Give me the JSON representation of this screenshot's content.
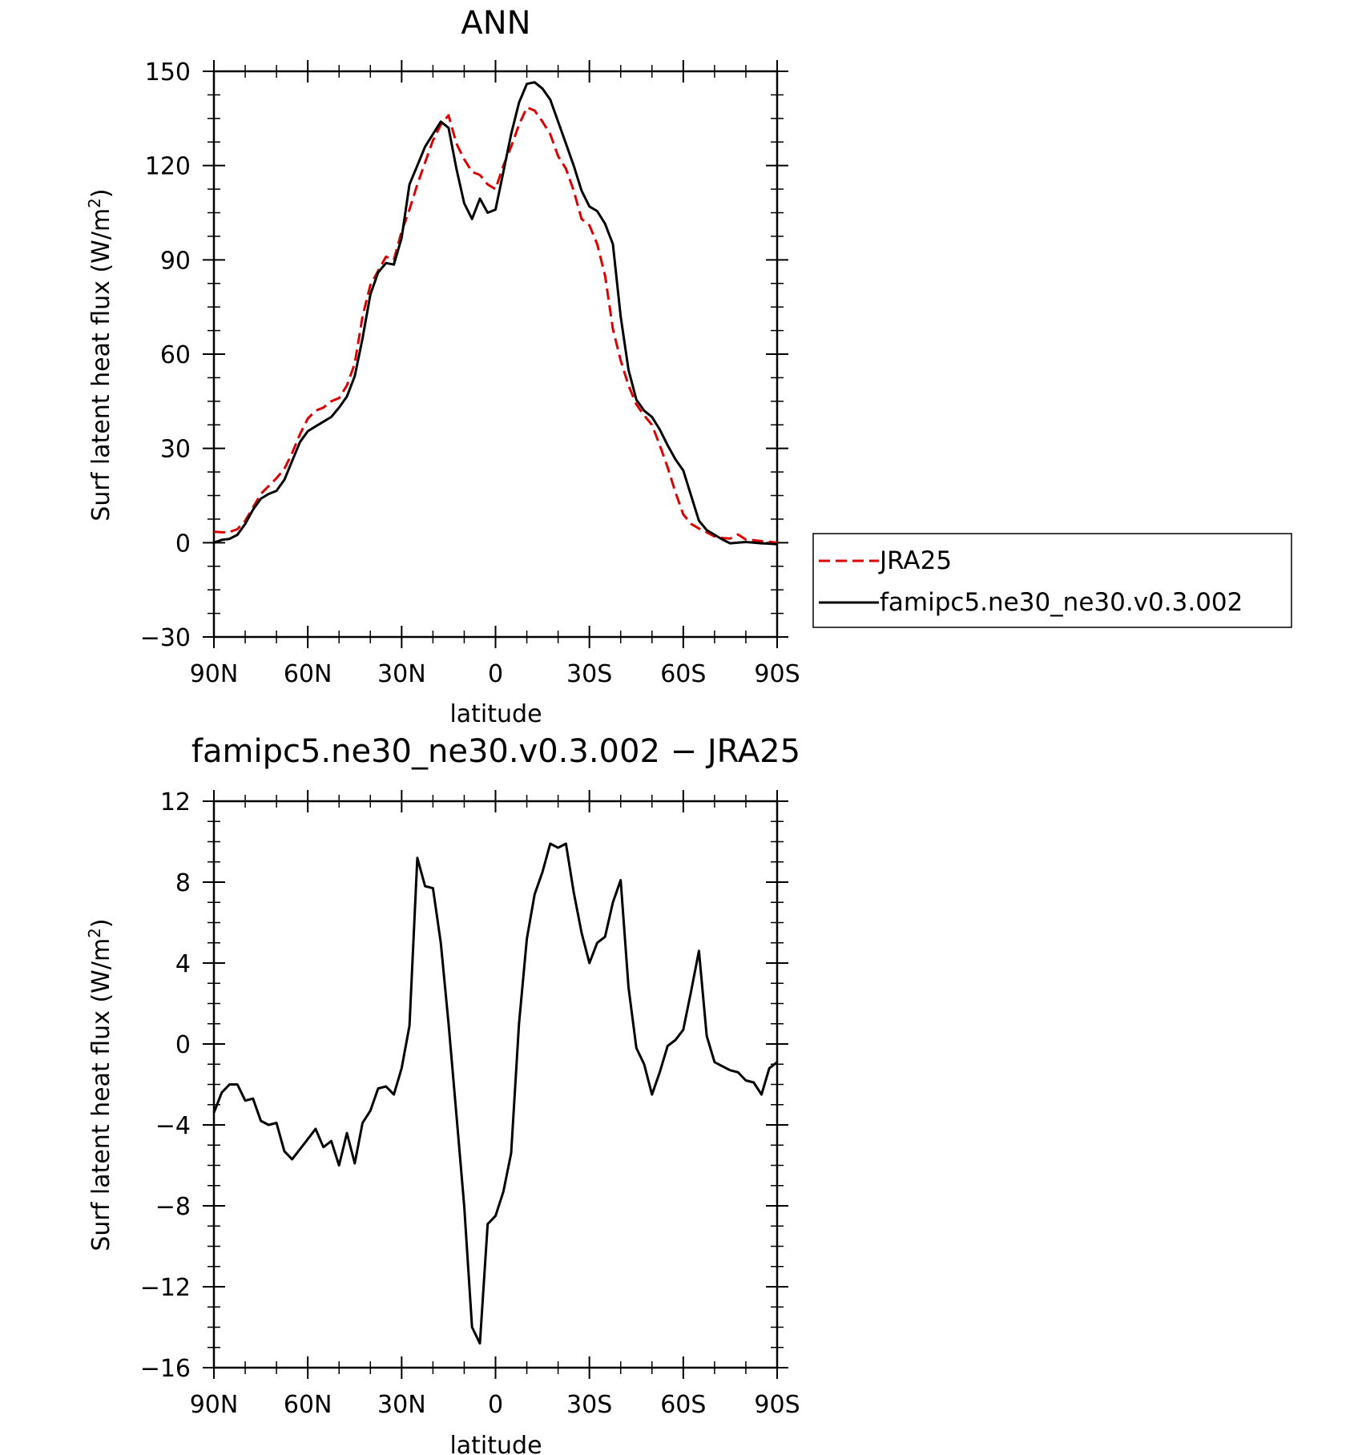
{
  "chart_data": [
    {
      "type": "line",
      "title": "ANN",
      "xlabel": "latitude",
      "ylabel": "Surf latent heat flux (W/m",
      "ylabel_sup": "2",
      "ylabel_tail": ")",
      "xlim": [
        90,
        -90
      ],
      "ylim": [
        -30,
        150
      ],
      "xticks": [
        90,
        60,
        30,
        0,
        -30,
        -60,
        -90
      ],
      "xtick_labels": [
        "90N",
        "60N",
        "30N",
        "0",
        "30S",
        "60S",
        "90S"
      ],
      "yticks": [
        -30,
        0,
        30,
        60,
        90,
        120,
        150
      ],
      "ytick_labels": [
        "−30",
        "0",
        "30",
        "60",
        "90",
        "120",
        "150"
      ],
      "legend_position": "right",
      "series": [
        {
          "name": "JRA25",
          "color": "#dd0000",
          "style": "dashed",
          "x": [
            90,
            87.5,
            85,
            82.5,
            80,
            77.5,
            75,
            72.5,
            70,
            67.5,
            65,
            62.5,
            60,
            57.5,
            55,
            52.5,
            50,
            47.5,
            45,
            42.5,
            40,
            37.5,
            35,
            32.5,
            30,
            27.5,
            25,
            22.5,
            20,
            17.5,
            15,
            12.5,
            10,
            7.5,
            5,
            2.5,
            0,
            -2.5,
            -5,
            -7.5,
            -10,
            -12.5,
            -15,
            -17.5,
            -20,
            -22.5,
            -25,
            -27.5,
            -30,
            -32.5,
            -35,
            -37.5,
            -40,
            -42.5,
            -45,
            -47.5,
            -50,
            -52.5,
            -55,
            -57.5,
            -60,
            -62.5,
            -65,
            -67.5,
            -70,
            -72.5,
            -75,
            -77.5,
            -80,
            -82.5,
            -85,
            -87.5,
            -90
          ],
          "y": [
            3.5,
            3.3,
            3.4,
            4.3,
            7.0,
            11.2,
            15.5,
            18.0,
            20.5,
            23.5,
            28.5,
            34.5,
            39.5,
            42.0,
            43.0,
            45.0,
            46.0,
            50.0,
            57.0,
            72.0,
            82.0,
            86.5,
            91.0,
            90.0,
            99.0,
            106.0,
            114.0,
            121.0,
            128.0,
            133.0,
            136.0,
            127.0,
            122.0,
            118.0,
            117.0,
            114.0,
            112.5,
            120.0,
            126.0,
            133.0,
            138.5,
            137.5,
            134.0,
            130.0,
            123.0,
            119.0,
            112.0,
            103.0,
            101.0,
            95.0,
            85.0,
            68.0,
            58.0,
            50.0,
            44.0,
            40.5,
            37.5,
            31.0,
            24.0,
            16.0,
            9.0,
            6.0,
            4.5,
            3.3,
            2.0,
            1.5,
            1.3,
            2.6,
            1.0,
            0.8,
            0.5,
            0.3,
            0.0
          ]
        },
        {
          "name": "famipc5.ne30_ne30.v0.3.002",
          "color": "#000000",
          "style": "solid",
          "x": [
            90,
            87.5,
            85,
            82.5,
            80,
            77.5,
            75,
            72.5,
            70,
            67.5,
            65,
            62.5,
            60,
            57.5,
            55,
            52.5,
            50,
            47.5,
            45,
            42.5,
            40,
            37.5,
            35,
            32.5,
            30,
            27.5,
            25,
            22.5,
            20,
            17.5,
            15,
            12.5,
            10,
            7.5,
            5,
            2.5,
            0,
            -2.5,
            -5,
            -7.5,
            -10,
            -12.5,
            -15,
            -17.5,
            -20,
            -22.5,
            -25,
            -27.5,
            -30,
            -32.5,
            -35,
            -37.5,
            -40,
            -42.5,
            -45,
            -47.5,
            -50,
            -52.5,
            -55,
            -57.5,
            -60,
            -62.5,
            -65,
            -67.5,
            -70,
            -72.5,
            -75,
            -77.5,
            -80,
            -82.5,
            -85,
            -87.5,
            -90
          ],
          "y": [
            0.0,
            0.9,
            1.2,
            2.5,
            6.0,
            10.5,
            14.0,
            15.5,
            16.5,
            20.0,
            26.0,
            32.0,
            35.5,
            37.0,
            38.5,
            40.0,
            43.0,
            46.5,
            53.0,
            65.0,
            79.0,
            86.0,
            89.0,
            88.5,
            97.0,
            114.0,
            120.0,
            126.0,
            130.0,
            134.0,
            132.0,
            119.0,
            108.0,
            103.0,
            109.5,
            105.0,
            106.0,
            118.0,
            130.0,
            140.0,
            146.0,
            146.5,
            144.5,
            141.0,
            134.0,
            127.0,
            120.0,
            112.0,
            107.0,
            105.5,
            101.5,
            95.0,
            72.0,
            55.0,
            45.5,
            42.0,
            40.0,
            36.0,
            31.0,
            26.5,
            23.0,
            15.0,
            7.0,
            4.0,
            2.5,
            1.0,
            -0.2,
            0.0,
            0.2,
            0.0,
            -0.2,
            -0.3,
            -0.5
          ]
        }
      ]
    },
    {
      "type": "line",
      "title": "famipc5.ne30_ne30.v0.3.002 − JRA25",
      "xlabel": "latitude",
      "ylabel": "Surf latent heat flux (W/m",
      "ylabel_sup": "2",
      "ylabel_tail": ")",
      "xlim": [
        90,
        -90
      ],
      "ylim": [
        -16,
        12
      ],
      "xticks": [
        90,
        60,
        30,
        0,
        -30,
        -60,
        -90
      ],
      "xtick_labels": [
        "90N",
        "60N",
        "30N",
        "0",
        "30S",
        "60S",
        "90S"
      ],
      "yticks": [
        -16,
        -12,
        -8,
        -4,
        0,
        4,
        8,
        12
      ],
      "ytick_labels": [
        "−16",
        "−12",
        "−8",
        "−4",
        "0",
        "4",
        "8",
        "12"
      ],
      "series": [
        {
          "color": "#000000",
          "style": "solid",
          "x": [
            90,
            87.5,
            85,
            82.5,
            80,
            77.5,
            75,
            72.5,
            70,
            67.5,
            65,
            62.5,
            60,
            57.5,
            55,
            52.5,
            50,
            47.5,
            45,
            42.5,
            40,
            37.5,
            35,
            32.5,
            30,
            27.5,
            25,
            22.5,
            20,
            17.5,
            15,
            12.5,
            10,
            7.5,
            5,
            2.5,
            0,
            -2.5,
            -5,
            -7.5,
            -10,
            -12.5,
            -15,
            -17.5,
            -20,
            -22.5,
            -25,
            -27.5,
            -30,
            -32.5,
            -35,
            -37.5,
            -40,
            -42.5,
            -45,
            -47.5,
            -50,
            -52.5,
            -55,
            -57.5,
            -60,
            -62.5,
            -65,
            -67.5,
            -70,
            -72.5,
            -75,
            -77.5,
            -80,
            -82.5,
            -85,
            -87.5,
            -90
          ],
          "y": [
            -3.4,
            -2.4,
            -2.0,
            -2.0,
            -2.8,
            -2.7,
            -3.8,
            -4.0,
            -3.9,
            -5.3,
            -5.7,
            -5.2,
            -4.7,
            -4.2,
            -5.1,
            -4.8,
            -6.0,
            -4.4,
            -5.9,
            -3.9,
            -3.3,
            -2.2,
            -2.1,
            -2.5,
            -1.2,
            0.9,
            9.2,
            7.8,
            7.7,
            5.0,
            1.0,
            -3.5,
            -8.0,
            -14.0,
            -14.8,
            -8.9,
            -8.5,
            -7.3,
            -5.4,
            1.0,
            5.2,
            7.4,
            8.5,
            9.9,
            9.7,
            9.9,
            7.5,
            5.5,
            4.0,
            5.0,
            5.3,
            7.0,
            8.1,
            2.8,
            -0.2,
            -1.0,
            -2.5,
            -1.4,
            -0.1,
            0.2,
            0.7,
            2.6,
            4.6,
            0.4,
            -0.9,
            -1.1,
            -1.3,
            -1.4,
            -1.8,
            -1.9,
            -2.5,
            -1.2,
            -0.9
          ]
        }
      ]
    }
  ]
}
